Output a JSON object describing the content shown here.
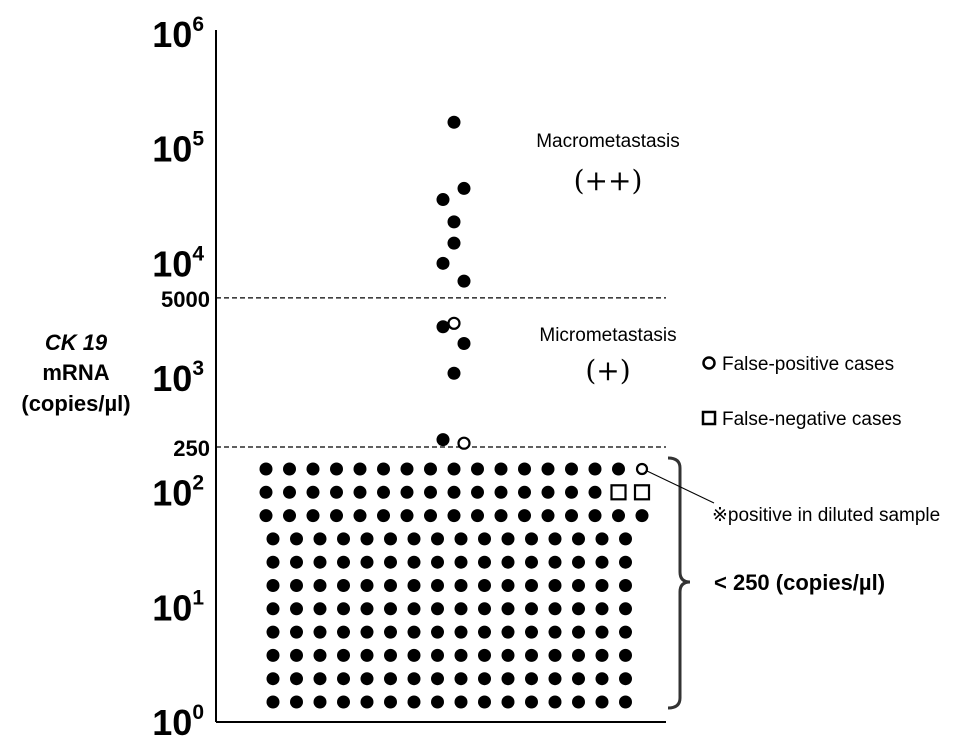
{
  "chart_data": {
    "type": "scatter",
    "title": "",
    "ylabel": [
      "CK 19",
      "mRNA",
      "(copies/µl)"
    ],
    "yscale": "log",
    "ylim": [
      1,
      1000000
    ],
    "yticks": [
      {
        "base": "10",
        "exp": "6"
      },
      {
        "base": "10",
        "exp": "5"
      },
      {
        "base": "10",
        "exp": "4"
      },
      {
        "base": "10",
        "exp": "3"
      },
      {
        "base": "10",
        "exp": "2"
      },
      {
        "base": "10",
        "exp": "1"
      },
      {
        "base": "10",
        "exp": "0"
      }
    ],
    "cutoffs": [
      {
        "value": 5000,
        "label": "5000"
      },
      {
        "value": 250,
        "label": "250"
      }
    ],
    "regions": [
      {
        "name": "Macrometastasis",
        "sign": "(++)"
      },
      {
        "name": "Micrometastasis",
        "sign": "(+)"
      }
    ],
    "points_above_cutoff": [
      {
        "y": 170000,
        "type": "positive"
      },
      {
        "y": 45000,
        "type": "positive"
      },
      {
        "y": 36000,
        "type": "positive"
      },
      {
        "y": 23000,
        "type": "positive"
      },
      {
        "y": 15000,
        "type": "positive"
      },
      {
        "y": 10000,
        "type": "positive"
      },
      {
        "y": 7000,
        "type": "positive"
      },
      {
        "y": 3000,
        "type": "false-positive"
      },
      {
        "y": 2800,
        "type": "positive"
      },
      {
        "y": 2000,
        "type": "positive"
      },
      {
        "y": 1100,
        "type": "positive"
      },
      {
        "y": 290,
        "type": "positive"
      },
      {
        "y": 270,
        "type": "false-positive"
      }
    ],
    "below_cutoff_grid": {
      "rows": [
        {
          "count": 17,
          "filled": 16,
          "false_positive": 1,
          "false_negative": 0
        },
        {
          "count": 17,
          "filled": 15,
          "false_positive": 0,
          "false_negative": 2
        },
        {
          "count": 17,
          "filled": 17,
          "false_positive": 0,
          "false_negative": 0
        },
        {
          "count": 16,
          "filled": 16,
          "false_positive": 0,
          "false_negative": 0
        },
        {
          "count": 16,
          "filled": 16,
          "false_positive": 0,
          "false_negative": 0
        },
        {
          "count": 16,
          "filled": 16,
          "false_positive": 0,
          "false_negative": 0
        },
        {
          "count": 16,
          "filled": 16,
          "false_positive": 0,
          "false_negative": 0
        },
        {
          "count": 16,
          "filled": 16,
          "false_positive": 0,
          "false_negative": 0
        },
        {
          "count": 16,
          "filled": 16,
          "false_positive": 0,
          "false_negative": 0
        },
        {
          "count": 16,
          "filled": 16,
          "false_positive": 0,
          "false_negative": 0
        },
        {
          "count": 16,
          "filled": 16,
          "false_positive": 0,
          "false_negative": 0
        }
      ],
      "label": "< 250 (copies/µl)"
    },
    "legend": [
      {
        "marker": "open-circle",
        "label": "False-positive cases"
      },
      {
        "marker": "open-square",
        "label": "False-negative cases"
      }
    ],
    "annotation": "※positive in diluted sample",
    "grid": false
  }
}
